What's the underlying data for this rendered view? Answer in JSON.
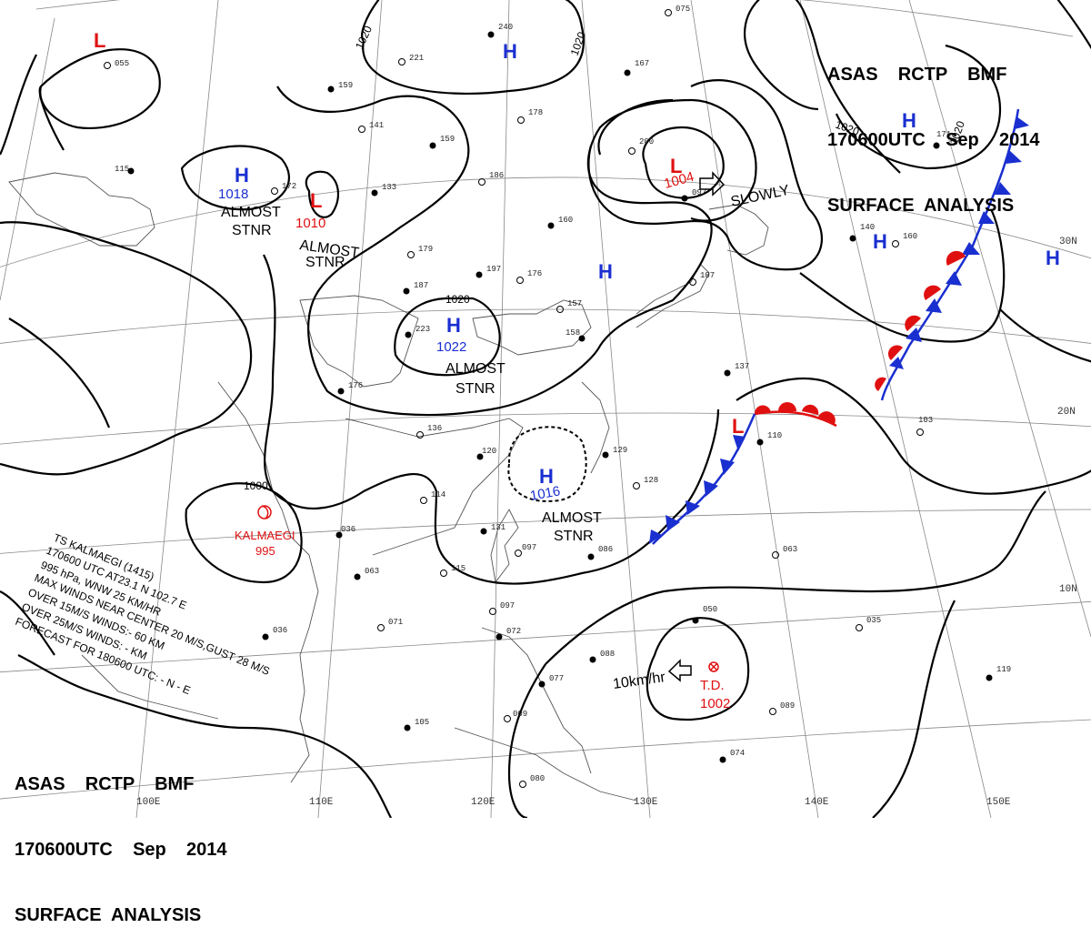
{
  "header_top": {
    "line1": "ASAS    RCTP    BMF",
    "line2": "170600UTC    Sep    2014",
    "line3": "SURFACE  ANALYSIS"
  },
  "header_bottom": {
    "line1": "ASAS    RCTP    BMF",
    "line2": "170600UTC    Sep    2014",
    "line3": "SURFACE  ANALYSIS"
  },
  "lat_labels": {
    "n30": "30N",
    "n20": "20N",
    "n10": "10N"
  },
  "lon_labels": {
    "e100": "100E",
    "e110": "110E",
    "e120": "120E",
    "e130": "130E",
    "e140": "140E",
    "e150": "150E"
  },
  "centers": {
    "l_nw": "L",
    "h_north": "H",
    "h_west": "H",
    "h_west_p": "1018",
    "l_central": "L",
    "l_central_p": "1010",
    "h_central": "H",
    "h_central_p": "1022",
    "l_north": "L",
    "l_north_p": "1004",
    "h_east": "H",
    "h_ne1": "H",
    "h_ne2": "H",
    "h_far": "H",
    "h_south": "H",
    "h_south_p": "1016",
    "l_front": "L",
    "td_name": "T.D.",
    "td_p": "1002",
    "ts_name": "KALMAEGI",
    "ts_p": "995"
  },
  "notes": {
    "almost": "ALMOST",
    "stnr": "STNR",
    "slowly": "SLOWLY",
    "td_motion": "10km/hr"
  },
  "isobars": {
    "a": "1020",
    "b": "1020",
    "c": "1020",
    "d": "1020",
    "e": "1020",
    "f": "1000"
  },
  "storm_text": [
    "TS  KALMAEGI  (1415)",
    "170600 UTC  AT23.1 N  102.7 E",
    "995 hPa, WNW  25 KM/HR",
    "MAX WINDS NEAR CENTER 20 M/S,GUST 28 M/S",
    "OVER 15M/S WINDS:- 60 KM",
    "OVER 25M/S WINDS: - KM",
    "FORECAST FOR 180600 UTC: - N - E"
  ],
  "station_samples": [
    "055",
    "240",
    "221",
    "159",
    "141",
    "159",
    "178",
    "115",
    "172",
    "133",
    "186",
    "160",
    "179",
    "197",
    "176",
    "187",
    "223",
    "176",
    "136",
    "120",
    "114",
    "036",
    "063",
    "115",
    "131",
    "097",
    "072",
    "077",
    "009",
    "036",
    "071",
    "105",
    "080",
    "088",
    "050",
    "035",
    "119",
    "089",
    "074",
    "063",
    "086",
    "097",
    "129",
    "128",
    "110",
    "103",
    "137",
    "107",
    "140",
    "160",
    "171",
    "200",
    "097",
    "075",
    "167",
    "157",
    "158"
  ],
  "colors": {
    "high": "#1a2fd0",
    "low": "#e01010",
    "cold_front": "#1a2fd0",
    "warm_front": "#e01010"
  }
}
